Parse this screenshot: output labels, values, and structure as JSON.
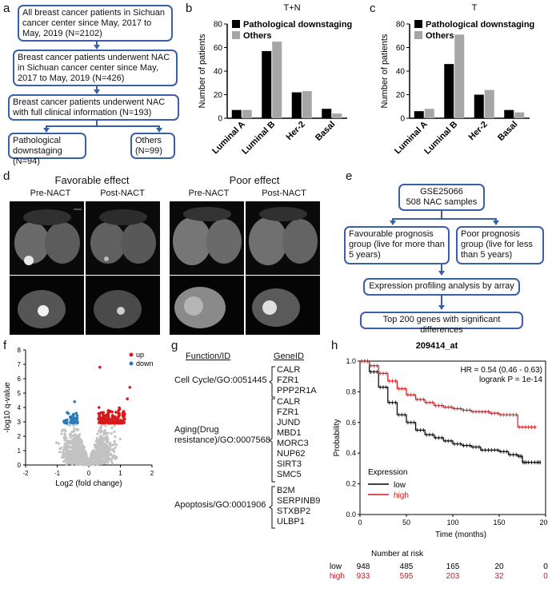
{
  "panels": {
    "a": "a",
    "b": "b",
    "c": "c",
    "d": "d",
    "e": "e",
    "f": "f",
    "g": "g",
    "h": "h"
  },
  "flow_a": {
    "box1": "All breast cancer patients in Sichuan cancer center since May, 2017 to May, 2019 (N=2102)",
    "box2": "Breast cancer patients underwent NAC in Sichuan cancer center since May, 2017 to May, 2019 (N=426)",
    "box3": "Breast cancer patients underwent NAC with full clinical information (N=193)",
    "box4": "Pathological downstaging (N=94)",
    "box5": "Others (N=99)"
  },
  "flow_e": {
    "box1_line1": "GSE25066",
    "box1_line2": "508 NAC samples",
    "box2": "Favourable prognosis group (live for more than 5 years)",
    "box3": "Poor prognosis group (live for less than 5 years)",
    "box4": "Expression profiling analysis by array",
    "box5": "Top 200 genes with significant differences"
  },
  "mri": {
    "favorable_title": "Favorable effect",
    "poor_title": "Poor effect",
    "pre": "Pre-NACT",
    "post": "Post-NACT"
  },
  "chart_data": [
    {
      "id": "b",
      "type": "bar",
      "title": "T+N",
      "categories": [
        "Luminal A",
        "Luminal B",
        "Her-2",
        "Basal"
      ],
      "series": [
        {
          "name": "Pathological downstaging",
          "values": [
            7,
            57,
            22,
            8
          ],
          "color": "#000000"
        },
        {
          "name": "Others",
          "values": [
            7,
            65,
            23,
            4
          ],
          "color": "#a6a6a6"
        }
      ],
      "ylabel": "Number of patients",
      "ylim": [
        0,
        80
      ],
      "yticks": [
        0,
        20,
        40,
        60,
        80
      ],
      "legend": "top-left"
    },
    {
      "id": "c",
      "type": "bar",
      "title": "T",
      "categories": [
        "Luminal A",
        "Luminal B",
        "Her-2",
        "Basal"
      ],
      "series": [
        {
          "name": "Pathological downstaging",
          "values": [
            6,
            46,
            20,
            7
          ],
          "color": "#000000"
        },
        {
          "name": "Others",
          "values": [
            8,
            71,
            24,
            5
          ],
          "color": "#a6a6a6"
        }
      ],
      "ylabel": "Number of patients",
      "ylim": [
        0,
        80
      ],
      "yticks": [
        0,
        20,
        40,
        60,
        80
      ],
      "legend": "top-left"
    },
    {
      "id": "f",
      "type": "scatter",
      "title": "",
      "xlabel": "Log2 (fold change)",
      "ylabel": "-log10 q-value",
      "xlim": [
        -2,
        2
      ],
      "ylim": [
        0,
        8
      ],
      "xticks": [
        -2,
        -1,
        0,
        1,
        2
      ],
      "yticks": [
        0,
        1,
        2,
        3,
        4,
        5,
        6,
        7,
        8
      ],
      "legend": [
        {
          "name": "up",
          "color": "#d7191c"
        },
        {
          "name": "down",
          "color": "#2c7bb6"
        }
      ],
      "outliers": [
        {
          "x": 0.35,
          "y": 6.8
        },
        {
          "x": 1.3,
          "y": 5.4
        },
        {
          "x": 1.22,
          "y": 4.6
        },
        {
          "x": -0.45,
          "y": 4.4
        }
      ]
    },
    {
      "id": "h",
      "type": "line",
      "title": "209414_at",
      "xlabel": "Time (months)",
      "ylabel": "Probability",
      "xlim": [
        0,
        200
      ],
      "ylim": [
        0,
        1.0
      ],
      "xticks": [
        0,
        50,
        100,
        150,
        200
      ],
      "yticks": [
        "0.0",
        "0.2",
        "0.4",
        "0.6",
        "0.8",
        "1.0"
      ],
      "annotation_hr": "HR = 0.54 (0.46 - 0.63)",
      "annotation_p": "logrank P = 1e-14",
      "legend_title": "Expression",
      "series": [
        {
          "name": "low",
          "color": "#000000",
          "x": [
            0,
            10,
            20,
            30,
            40,
            50,
            60,
            70,
            80,
            90,
            100,
            110,
            120,
            130,
            140,
            150,
            160,
            170,
            175,
            180,
            190,
            195
          ],
          "y": [
            1.0,
            0.93,
            0.83,
            0.73,
            0.65,
            0.6,
            0.55,
            0.52,
            0.5,
            0.48,
            0.46,
            0.45,
            0.44,
            0.42,
            0.42,
            0.41,
            0.39,
            0.38,
            0.34,
            0.34,
            0.34,
            0.34
          ]
        },
        {
          "name": "high",
          "color": "#d7191c",
          "x": [
            0,
            10,
            20,
            30,
            40,
            50,
            60,
            70,
            80,
            90,
            100,
            110,
            120,
            130,
            140,
            150,
            160,
            170,
            180,
            190
          ],
          "y": [
            1.0,
            0.97,
            0.92,
            0.87,
            0.82,
            0.78,
            0.75,
            0.73,
            0.71,
            0.7,
            0.69,
            0.68,
            0.67,
            0.67,
            0.66,
            0.65,
            0.65,
            0.57,
            0.57,
            0.57
          ]
        }
      ],
      "risk_title": "Number at risk",
      "risk_rows": [
        {
          "label": "low",
          "values": [
            "948",
            "485",
            "165",
            "20",
            "0"
          ],
          "color": "#000000"
        },
        {
          "label": "high",
          "values": [
            "933",
            "595",
            "203",
            "32",
            "0"
          ],
          "color": "#d7191c"
        }
      ]
    }
  ],
  "table_g": {
    "head_function": "Function/ID",
    "head_gene": "GeneID",
    "groups": [
      {
        "function": "Cell Cycle/GO:0051445",
        "genes": [
          "CALR",
          "FZR1",
          "PPP2R1A"
        ]
      },
      {
        "function_line1": "Aging(Drug",
        "function_line2": "resistance)/GO:0007568",
        "genes": [
          "CALR",
          "FZR1",
          "JUND",
          "MBD1",
          "MORC3",
          "NUP62",
          "SIRT3",
          "SMC5"
        ]
      },
      {
        "function": "Apoptosis/GO:0001906",
        "genes": [
          "B2M",
          "SERPINB9",
          "STXBP2",
          "ULBP1"
        ]
      }
    ]
  }
}
